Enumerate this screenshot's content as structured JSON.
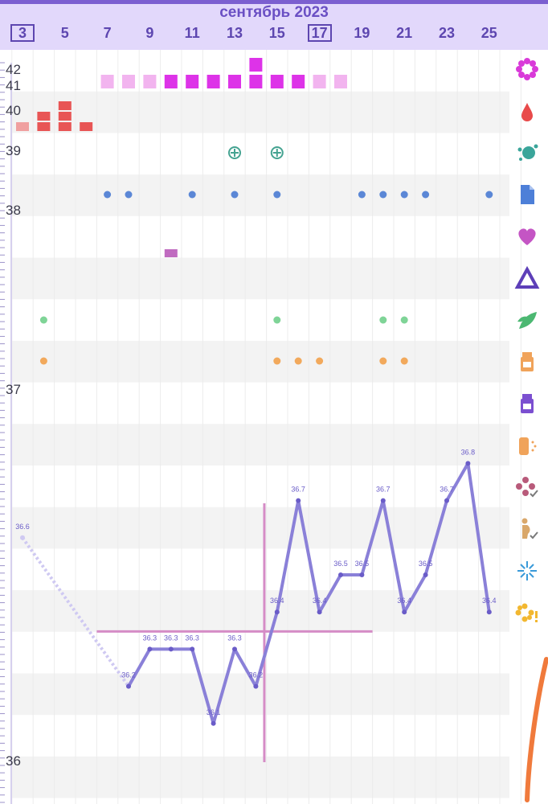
{
  "header": {
    "month": "сентябрь 2023",
    "days": [
      "3",
      "5",
      "7",
      "9",
      "11",
      "13",
      "15",
      "17",
      "19",
      "21",
      "23",
      "25"
    ],
    "boxed_days": [
      "3",
      "17"
    ]
  },
  "colors": {
    "accent": "#6a4fc4",
    "header_bg": "#e2d8fb",
    "temp_line": "#8a80d8",
    "coverline": "#d58cc6",
    "bleeding": "#e85555",
    "fertile_strong": "#dd33e8",
    "fertile_light": "#f2b4ef",
    "test_positive": "#45a391",
    "dot_blue": "#5b87d6",
    "dot_green": "#7fd497",
    "dot_orange": "#f2a95c",
    "mucus": "#c06bc0",
    "orange_stroke": "#f07a3c"
  },
  "sidebar_icons": [
    "flower-icon",
    "blood-drop-icon",
    "splash-icon",
    "document-icon",
    "heart-icon",
    "triangle-icon",
    "leaf-icon",
    "pill-bottle-icon",
    "medicine-bottle-icon",
    "spray-icon",
    "flower-check-icon",
    "pregnant-check-icon",
    "sparkle-icon",
    "sun-alert-icon"
  ],
  "chart_data": {
    "type": "line",
    "title": "сентябрь 2023",
    "x_day_range": [
      2,
      26
    ],
    "y_axis_labels": [
      "42",
      "41",
      "40",
      "39",
      "38",
      "37",
      "36"
    ],
    "ylim": [
      35.9,
      37.0
    ],
    "temperature": {
      "days": [
        3,
        8,
        9,
        10,
        11,
        12,
        13,
        14,
        15,
        16,
        17,
        18,
        19,
        20,
        21,
        22,
        23,
        24,
        25
      ],
      "values": [
        36.6,
        36.2,
        36.3,
        36.3,
        36.3,
        36.1,
        36.3,
        36.2,
        36.4,
        36.7,
        36.4,
        36.5,
        36.5,
        36.7,
        36.4,
        36.5,
        36.7,
        36.8,
        36.4
      ],
      "labels": [
        "36.6",
        "36.2",
        "36.3",
        "36.3",
        "36.3",
        "36.1",
        "36.3",
        "36.2",
        "36.4",
        "36.7",
        "36.4",
        "36.5",
        "36.5",
        "36.7",
        "36.4",
        "36.5",
        "36.7",
        "36.8",
        "36.4"
      ],
      "dotted_segments_end_index": 1
    },
    "coverline": {
      "value": 36.3,
      "from_day": 6.5,
      "to_day": 19.5
    },
    "ovulation_day": 14.4,
    "fertility": [
      {
        "day": 7,
        "level": "light"
      },
      {
        "day": 8,
        "level": "light"
      },
      {
        "day": 9,
        "level": "light"
      },
      {
        "day": 10,
        "level": "strong"
      },
      {
        "day": 11,
        "level": "strong"
      },
      {
        "day": 12,
        "level": "strong"
      },
      {
        "day": 13,
        "level": "strong"
      },
      {
        "day": 14,
        "level": "peak"
      },
      {
        "day": 15,
        "level": "strong"
      },
      {
        "day": 16,
        "level": "strong"
      },
      {
        "day": 17,
        "level": "light"
      },
      {
        "day": 18,
        "level": "light"
      }
    ],
    "bleeding": [
      {
        "day": 3,
        "level": 1
      },
      {
        "day": 4,
        "level": 2
      },
      {
        "day": 5,
        "level": 3
      },
      {
        "day": 6,
        "level": 1
      }
    ],
    "positive_tests": [
      13,
      15
    ],
    "blue_dots": [
      7,
      8,
      11,
      13,
      15,
      19,
      20,
      21,
      22,
      25
    ],
    "mucus_marks": [
      10
    ],
    "green_dots": [
      4,
      15,
      20,
      21
    ],
    "orange_dots": [
      4,
      15,
      16,
      17,
      20,
      21
    ]
  }
}
